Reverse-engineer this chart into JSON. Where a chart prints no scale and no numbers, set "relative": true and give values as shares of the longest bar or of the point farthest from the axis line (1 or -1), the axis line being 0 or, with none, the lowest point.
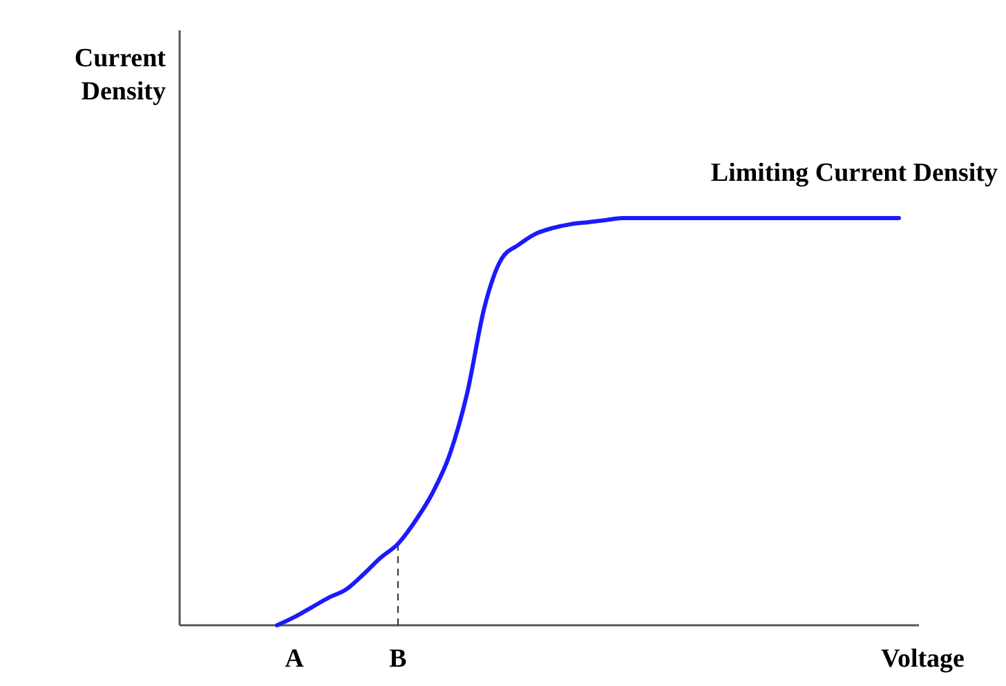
{
  "chart_data": {
    "type": "line",
    "relative": true,
    "xlabel": "Voltage",
    "ylabel": "Current Density",
    "color": "#1a1aff",
    "categories": [
      null,
      null,
      null,
      null,
      null,
      null,
      "A",
      null,
      null,
      null,
      null,
      null,
      "B",
      null,
      null,
      null,
      null,
      null,
      null,
      null,
      null,
      null,
      null,
      null,
      null,
      null,
      null,
      null,
      null,
      null,
      null,
      null,
      null,
      null,
      null,
      null,
      null,
      null,
      null,
      null,
      null,
      null
    ],
    "values": [
      null,
      null,
      null,
      null,
      null,
      0,
      0.02,
      0.044,
      0.068,
      0.088,
      0.125,
      0.166,
      0.2,
      0.256,
      0.325,
      0.42,
      0.569,
      0.78,
      0.9,
      0.935,
      0.962,
      0.976,
      0.985,
      0.99,
      0.995,
      1,
      1,
      1,
      1,
      1,
      1,
      1,
      1,
      1,
      1,
      1,
      1,
      1,
      1,
      1,
      1,
      1
    ],
    "ref_lines": [
      {
        "axis": "x",
        "value": "B",
        "label": null,
        "line_style": "dashed",
        "color": "#333333"
      }
    ],
    "annotations": [
      "Limiting Current Density"
    ],
    "grid": false,
    "marker": "none",
    "line_style": "solid"
  }
}
